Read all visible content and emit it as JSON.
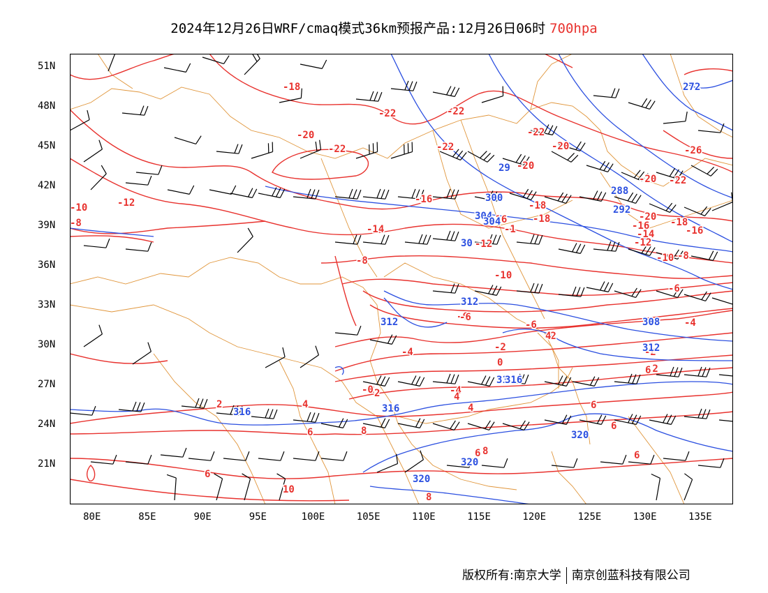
{
  "title": {
    "text": "2024年12月26日WRF/cmaq模式36km预报产品:12月26日06时",
    "level": "700hpa",
    "level_color": "#e8322e"
  },
  "map": {
    "lon_labels": [
      "80E",
      "85E",
      "90E",
      "95E",
      "100E",
      "105E",
      "110E",
      "115E",
      "120E",
      "125E",
      "130E",
      "135E"
    ],
    "lat_labels": [
      "51N",
      "48N",
      "45N",
      "42N",
      "39N",
      "36N",
      "33N",
      "30N",
      "27N",
      "24N",
      "21N"
    ],
    "temperature_contours": {
      "color": "#e8322e",
      "labels": [
        "-18",
        "-22",
        "-22",
        "-20",
        "-22",
        "-22",
        "-20",
        "-20",
        "-22",
        "-26",
        "-20",
        "-22",
        "-12",
        "-10",
        "-8",
        "-20",
        "-18",
        "-16",
        "-18",
        "-16",
        "-14",
        "-1",
        "-16",
        "-18",
        "-12",
        "-16",
        "-14",
        "-12",
        "-8",
        "-10",
        "-10",
        "-8",
        "-6",
        "-6",
        "-6",
        "-6",
        "-4",
        "-4",
        "-2",
        "-2",
        "-2",
        "-4",
        "-4",
        "-2",
        "0",
        "-2",
        "-0",
        "2",
        "4",
        "4",
        "2",
        "4",
        "6",
        "6",
        "4",
        "8",
        "6",
        "6",
        "6",
        "8",
        "8",
        "10",
        "6",
        "6"
      ]
    },
    "height_contours": {
      "color": "#2b4fe0",
      "labels": [
        "272",
        "29",
        "288",
        "300",
        "304",
        "292",
        "30",
        "304",
        "312",
        "312",
        "308",
        "312",
        "31",
        "316",
        "316",
        "316",
        "320",
        "320",
        "320"
      ]
    },
    "wind_barbs": true
  },
  "footer": {
    "copyright": "版权所有:南京大学",
    "company": "南京创蓝科技有限公司"
  }
}
